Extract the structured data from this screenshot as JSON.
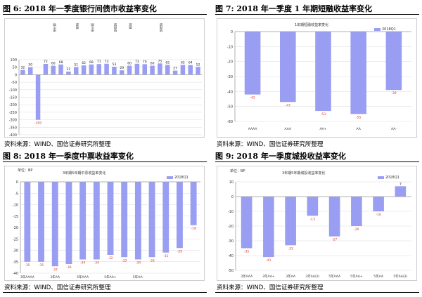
{
  "colors": {
    "bar": "#9a9ef2",
    "axis": "#9e9e9e",
    "grid": "#d9d9d9",
    "tick_text": "#333333",
    "neg_label": "#d9342b",
    "pos_label": "#222222"
  },
  "panels": [
    {
      "title": "图 6:  2018 年一季度银行间债市收益率变化",
      "source": "资料来源：WIND、国信证券研究所整理",
      "unit": "",
      "subtitle": "",
      "legend": "",
      "chart_data": {
        "type": "bar",
        "categories": [
          "",
          "",
          "",
          "",
          "",
          "",
          "",
          "",
          "",
          "",
          "",
          "",
          "",
          "",
          "",
          "",
          "",
          "",
          "",
          "",
          "",
          "",
          "",
          ""
        ],
        "category_rotated_labels": [
          "",
          "",
          "",
          "",
          "国开债",
          "",
          "",
          "短融",
          "",
          "国开债",
          "",
          "",
          "城投债",
          "",
          "短融",
          "",
          "",
          "",
          "城投债",
          "",
          "",
          "",
          "",
          ""
        ],
        "values": [
          32,
          50,
          -300,
          72,
          60,
          68,
          21,
          51,
          62,
          68,
          71,
          73,
          53,
          29,
          60,
          73,
          70,
          60,
          75,
          65,
          27,
          65,
          64,
          52
        ],
        "ylim": [
          -400,
          100
        ],
        "yticks": [
          100,
          50,
          0,
          -50,
          -100,
          -150,
          -200,
          -250,
          -300,
          -350,
          -400
        ],
        "title": "",
        "xlabel": "",
        "ylabel": ""
      }
    },
    {
      "title": "图 7:  2018 年一季度 1 年期短融收益率变化",
      "source": "资料来源：WIND、国信证券研究所整理",
      "unit": "",
      "subtitle": "1年期短融收益率变化",
      "legend": "2018Q1",
      "chart_data": {
        "type": "bar",
        "categories": [
          "AAAA",
          "AAA",
          "AA+",
          "AA",
          "AA-"
        ],
        "values": [
          -42,
          -47,
          -53,
          -55,
          -39
        ],
        "ylim": [
          -60,
          0
        ],
        "yticks": [
          0,
          -10,
          -20,
          -30,
          -40,
          -50,
          -60
        ],
        "title": "",
        "xlabel": "",
        "ylabel": ""
      }
    },
    {
      "title": "图 8:  2018 年一季度中票收益率变化",
      "source": "资料来源：WIND、国信证券研究所整理",
      "unit": "单位：BP",
      "subtitle": "3年期5年期中票收益率变化",
      "legend": "2018Q1",
      "chart_data": {
        "type": "bar",
        "categories": [
          "3年AAAA",
          "",
          "3年AA",
          "",
          "5年AAA",
          "",
          "5年AA+",
          "",
          "5年AA-",
          "",
          "",
          ""
        ],
        "values": [
          -35,
          -35,
          -37,
          -36,
          -34,
          -34,
          -32,
          -33,
          -34,
          -33,
          -31,
          -29
        ],
        "extra_bars": [
          {
            "index": 12,
            "value": -19
          }
        ],
        "ylim": [
          -40,
          0
        ],
        "yticks": [
          0,
          -5,
          -10,
          -15,
          -20,
          -25,
          -30,
          -35,
          -40
        ],
        "title": "",
        "xlabel": "",
        "ylabel": ""
      }
    },
    {
      "title": "图 9:  2018 年一季度城投收益率变化",
      "source": "资料来源：WIND、国信证券研究所整理",
      "unit": "单位：BP",
      "subtitle": "3年期5年期城投收益率变化",
      "legend": "2018Q1",
      "chart_data": {
        "type": "bar",
        "categories": [
          "3年AAA",
          "3年AA+",
          "3年AA",
          "3年AA(2)",
          "5年AAA",
          "5年AA+",
          "5年AA",
          "5年AA(2)"
        ],
        "values": [
          -35,
          -41,
          -33,
          -13,
          -27,
          -20,
          -10,
          7
        ],
        "ylim": [
          -50,
          10
        ],
        "yticks": [
          10,
          0,
          -10,
          -20,
          -30,
          -40,
          -50
        ],
        "title": "",
        "xlabel": "",
        "ylabel": ""
      }
    }
  ]
}
